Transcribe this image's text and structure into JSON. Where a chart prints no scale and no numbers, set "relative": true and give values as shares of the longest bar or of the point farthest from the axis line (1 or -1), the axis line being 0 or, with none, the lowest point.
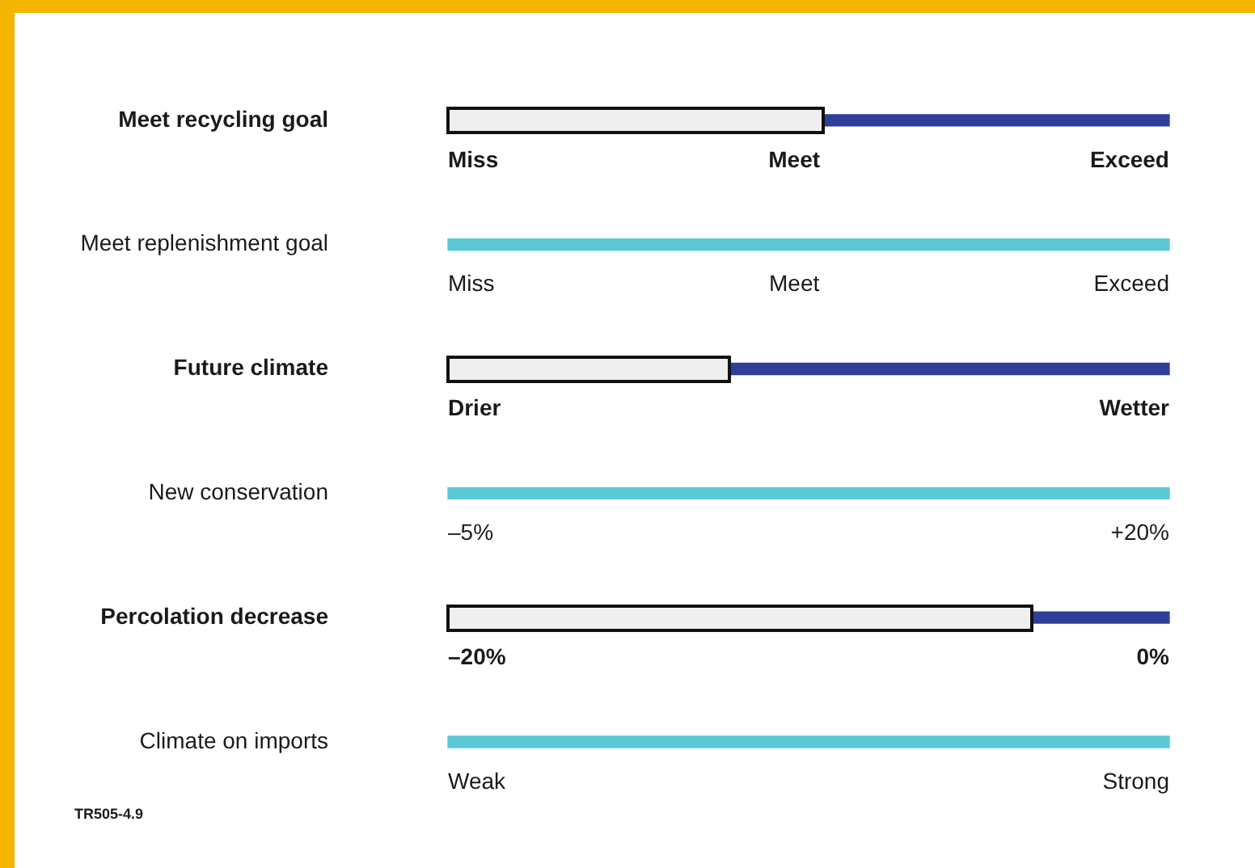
{
  "chart_data": {
    "type": "bar",
    "orientation": "horizontal",
    "stacked": true,
    "relative": true,
    "legend": false,
    "grid": false,
    "categories": [
      "Meet recycling goal",
      "Meet replenishment goal",
      "Future climate",
      "New conservation",
      "Percolation decrease",
      "Climate on imports"
    ],
    "series": [
      {
        "color": "#efefef",
        "values": [
          0.52,
          null,
          0.39,
          null,
          0.81,
          null
        ]
      },
      {
        "colors": [
          "#2e3f98",
          "#5bc8d5",
          "#2e3f98",
          "#5bc8d5",
          "#2e3f98",
          "#5bc8d5"
        ],
        "values": [
          0.48,
          1,
          0.61,
          1,
          0.19,
          1
        ]
      }
    ],
    "annotations": [
      "Miss",
      "Meet",
      "Exceed",
      "Miss",
      "Meet",
      "Exceed",
      "Drier",
      "Wetter",
      "–5%",
      "+20%",
      "–20%",
      "0%",
      "Weak",
      "Strong",
      "TR505-4.9"
    ]
  }
}
